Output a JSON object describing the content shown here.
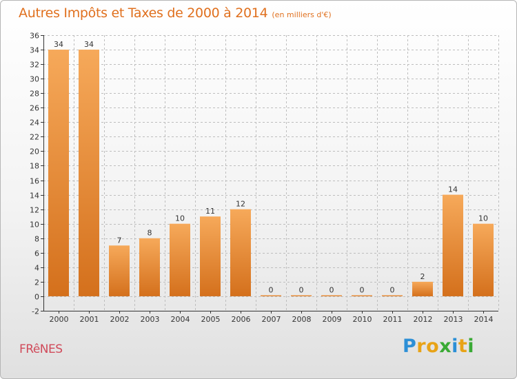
{
  "header": {
    "title": "Autres Impôts et Taxes de 2000 à 2014",
    "subtitle": "(en milliers d'€)"
  },
  "footer": {
    "commune": "FRêNES",
    "brand": "Proxiti",
    "brand_letter_colors": [
      "#2c8fd6",
      "#e8a317",
      "#e8a317",
      "#3aaa35",
      "#2c8fd6",
      "#e8a317",
      "#3aaa35"
    ]
  },
  "colors": {
    "bar_light": "#f6a95a",
    "bar_dark": "#d4701c",
    "axis": "#333333",
    "grid": "#bdbdbd"
  },
  "chart_data": {
    "type": "bar",
    "categories": [
      "2000",
      "2001",
      "2002",
      "2003",
      "2004",
      "2005",
      "2006",
      "2007",
      "2008",
      "2009",
      "2010",
      "2011",
      "2012",
      "2013",
      "2014"
    ],
    "values": [
      34,
      34,
      7,
      8,
      10,
      11,
      12,
      0,
      0,
      0,
      0,
      0,
      2,
      14,
      10
    ],
    "value_labels": [
      "34",
      "34",
      "7",
      "8",
      "10",
      "11",
      "12",
      "0",
      "0",
      "0",
      "0",
      "0",
      "2",
      "14",
      "10"
    ],
    "title": "Autres Impôts et Taxes de 2000 à 2014",
    "subtitle": "(en milliers d'€)",
    "xlabel": "",
    "ylabel": "",
    "ylim": [
      -2,
      36
    ],
    "yticks": [
      -2,
      0,
      2,
      4,
      6,
      8,
      10,
      12,
      14,
      16,
      18,
      20,
      22,
      24,
      26,
      28,
      30,
      32,
      34,
      36
    ],
    "grid": true
  }
}
